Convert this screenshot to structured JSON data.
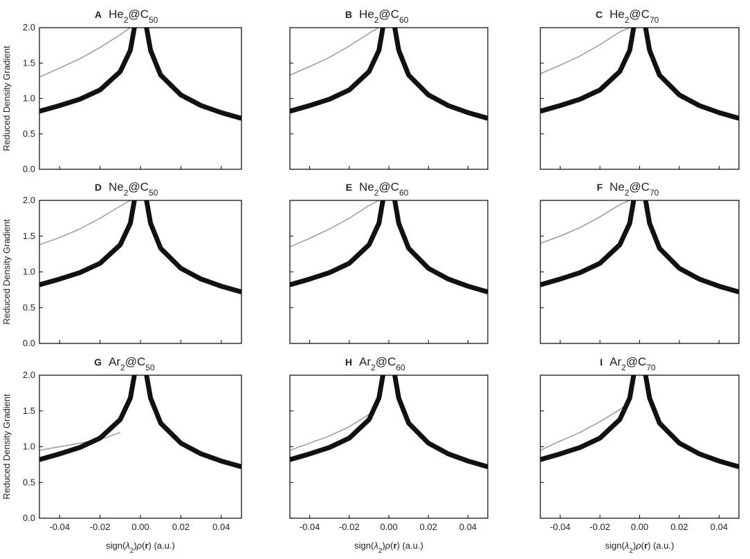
{
  "chart_data": [
    {
      "type": "line",
      "letter": "A",
      "title_parts": [
        "He",
        "2",
        "@C",
        "50"
      ],
      "ylabel": "Reduced Density Gradient",
      "x": [
        -0.05,
        -0.04,
        -0.03,
        -0.02,
        -0.01,
        -0.005,
        -0.003,
        0.003,
        0.005,
        0.01,
        0.02,
        0.03,
        0.04,
        0.05
      ],
      "series": [
        {
          "color": "#9a9a9a",
          "values": [
            1.3,
            1.43,
            1.56,
            1.72,
            1.9,
            2.0,
            null,
            null,
            null,
            null,
            null,
            null,
            null,
            null
          ]
        },
        {
          "color": "#111111",
          "values": [
            0.82,
            0.9,
            0.99,
            1.12,
            1.38,
            1.68,
            2.0,
            null,
            null,
            null,
            null,
            null,
            null,
            null
          ]
        },
        {
          "color": "#111111",
          "values": [
            null,
            null,
            null,
            null,
            null,
            null,
            null,
            2.0,
            1.68,
            1.33,
            1.05,
            0.9,
            0.8,
            0.72
          ]
        }
      ],
      "xlim": [
        -0.05,
        0.05
      ],
      "ylim": [
        0,
        2
      ],
      "xticks": [
        -0.04,
        -0.02,
        {
          "value": 0,
          "label": "0.00"
        },
        0.02,
        0.04
      ],
      "yticks": [
        {
          "value": 0,
          "label": "0.0"
        },
        0.5,
        {
          "value": 1,
          "label": "1.0"
        },
        1.5,
        {
          "value": 2,
          "label": "2.0"
        }
      ]
    },
    {
      "type": "line",
      "letter": "B",
      "title_parts": [
        "He",
        "2",
        "@C",
        "60"
      ],
      "x": [
        -0.05,
        -0.04,
        -0.03,
        -0.02,
        -0.01,
        -0.005,
        -0.003,
        0.003,
        0.005,
        0.01,
        0.02,
        0.03,
        0.04,
        0.05
      ],
      "series": [
        {
          "color": "#9a9a9a",
          "values": [
            1.33,
            1.45,
            1.58,
            1.74,
            1.92,
            2.0,
            null,
            null,
            null,
            null,
            null,
            null,
            null,
            null
          ]
        },
        {
          "color": "#111111",
          "values": [
            0.82,
            0.9,
            0.99,
            1.12,
            1.38,
            1.68,
            2.0,
            null,
            null,
            null,
            null,
            null,
            null,
            null
          ]
        },
        {
          "color": "#111111",
          "values": [
            null,
            null,
            null,
            null,
            null,
            null,
            null,
            2.0,
            1.68,
            1.33,
            1.05,
            0.9,
            0.8,
            0.72
          ]
        }
      ],
      "xlim": [
        -0.05,
        0.05
      ],
      "ylim": [
        0,
        2
      ],
      "xticks": [
        -0.04,
        -0.02,
        {
          "value": 0,
          "label": "0.00"
        },
        0.02,
        0.04
      ],
      "yticks": [
        {
          "value": 0,
          "label": "0.0"
        },
        0.5,
        {
          "value": 1,
          "label": "1.0"
        },
        1.5,
        {
          "value": 2,
          "label": "2.0"
        }
      ]
    },
    {
      "type": "line",
      "letter": "C",
      "title_parts": [
        "He",
        "2",
        "@C",
        "70"
      ],
      "x": [
        -0.05,
        -0.04,
        -0.03,
        -0.02,
        -0.01,
        -0.005,
        -0.003,
        0.003,
        0.005,
        0.01,
        0.02,
        0.03,
        0.04,
        0.05
      ],
      "series": [
        {
          "color": "#9a9a9a",
          "values": [
            1.35,
            1.47,
            1.6,
            1.76,
            1.94,
            2.0,
            null,
            null,
            null,
            null,
            null,
            null,
            null,
            null
          ]
        },
        {
          "color": "#111111",
          "values": [
            0.82,
            0.9,
            0.99,
            1.12,
            1.38,
            1.68,
            2.0,
            null,
            null,
            null,
            null,
            null,
            null,
            null
          ]
        },
        {
          "color": "#111111",
          "values": [
            null,
            null,
            null,
            null,
            null,
            null,
            null,
            2.0,
            1.68,
            1.33,
            1.05,
            0.9,
            0.8,
            0.72
          ]
        }
      ],
      "xlim": [
        -0.05,
        0.05
      ],
      "ylim": [
        0,
        2
      ],
      "xticks": [
        -0.04,
        -0.02,
        {
          "value": 0,
          "label": "0.00"
        },
        0.02,
        0.04
      ],
      "yticks": [
        {
          "value": 0,
          "label": "0.0"
        },
        0.5,
        {
          "value": 1,
          "label": "1.0"
        },
        1.5,
        {
          "value": 2,
          "label": "2.0"
        }
      ]
    },
    {
      "type": "line",
      "letter": "D",
      "title_parts": [
        "Ne",
        "2",
        "@C",
        "50"
      ],
      "ylabel": "Reduced Density Gradient",
      "x": [
        -0.05,
        -0.04,
        -0.03,
        -0.02,
        -0.01,
        -0.005,
        -0.003,
        0.003,
        0.005,
        0.01,
        0.02,
        0.03,
        0.04,
        0.05
      ],
      "series": [
        {
          "color": "#9a9a9a",
          "values": [
            1.38,
            1.48,
            1.6,
            1.75,
            1.92,
            2.0,
            null,
            null,
            null,
            null,
            null,
            null,
            null,
            null
          ]
        },
        {
          "color": "#111111",
          "values": [
            0.82,
            0.9,
            0.99,
            1.12,
            1.38,
            1.68,
            2.0,
            null,
            null,
            null,
            null,
            null,
            null,
            null
          ]
        },
        {
          "color": "#111111",
          "values": [
            null,
            null,
            null,
            null,
            null,
            null,
            null,
            2.0,
            1.68,
            1.33,
            1.05,
            0.9,
            0.8,
            0.72
          ]
        }
      ],
      "xlim": [
        -0.05,
        0.05
      ],
      "ylim": [
        0,
        2
      ],
      "xticks": [
        -0.04,
        -0.02,
        {
          "value": 0,
          "label": "0.00"
        },
        0.02,
        0.04
      ],
      "yticks": [
        {
          "value": 0,
          "label": "0.0"
        },
        0.5,
        {
          "value": 1,
          "label": "1.0"
        },
        1.5,
        {
          "value": 2,
          "label": "2.0"
        }
      ]
    },
    {
      "type": "line",
      "letter": "E",
      "title_parts": [
        "Ne",
        "2",
        "@C",
        "60"
      ],
      "x": [
        -0.05,
        -0.04,
        -0.03,
        -0.02,
        -0.01,
        -0.005,
        -0.003,
        0.003,
        0.005,
        0.01,
        0.02,
        0.03,
        0.04,
        0.05
      ],
      "series": [
        {
          "color": "#9a9a9a",
          "values": [
            1.35,
            1.47,
            1.6,
            1.75,
            1.93,
            2.0,
            null,
            null,
            null,
            null,
            null,
            null,
            null,
            null
          ]
        },
        {
          "color": "#111111",
          "values": [
            0.82,
            0.9,
            0.99,
            1.12,
            1.38,
            1.68,
            2.0,
            null,
            null,
            null,
            null,
            null,
            null,
            null
          ]
        },
        {
          "color": "#111111",
          "values": [
            null,
            null,
            null,
            null,
            null,
            null,
            null,
            2.0,
            1.68,
            1.33,
            1.05,
            0.9,
            0.8,
            0.72
          ]
        }
      ],
      "xlim": [
        -0.05,
        0.05
      ],
      "ylim": [
        0,
        2
      ],
      "xticks": [
        -0.04,
        -0.02,
        {
          "value": 0,
          "label": "0.00"
        },
        0.02,
        0.04
      ],
      "yticks": [
        {
          "value": 0,
          "label": "0.0"
        },
        0.5,
        {
          "value": 1,
          "label": "1.0"
        },
        1.5,
        {
          "value": 2,
          "label": "2.0"
        }
      ]
    },
    {
      "type": "line",
      "letter": "F",
      "title_parts": [
        "Ne",
        "2",
        "@C",
        "70"
      ],
      "x": [
        -0.05,
        -0.04,
        -0.03,
        -0.02,
        -0.01,
        -0.005,
        -0.003,
        0.003,
        0.005,
        0.01,
        0.02,
        0.03,
        0.04,
        0.05
      ],
      "series": [
        {
          "color": "#9a9a9a",
          "values": [
            1.4,
            1.5,
            1.62,
            1.77,
            1.94,
            2.0,
            null,
            null,
            null,
            null,
            null,
            null,
            null,
            null
          ]
        },
        {
          "color": "#111111",
          "values": [
            0.82,
            0.9,
            0.99,
            1.12,
            1.38,
            1.68,
            2.0,
            null,
            null,
            null,
            null,
            null,
            null,
            null
          ]
        },
        {
          "color": "#111111",
          "values": [
            null,
            null,
            null,
            null,
            null,
            null,
            null,
            2.0,
            1.68,
            1.33,
            1.05,
            0.9,
            0.8,
            0.72
          ]
        }
      ],
      "xlim": [
        -0.05,
        0.05
      ],
      "ylim": [
        0,
        2
      ],
      "xticks": [
        -0.04,
        -0.02,
        {
          "value": 0,
          "label": "0.00"
        },
        0.02,
        0.04
      ],
      "yticks": [
        {
          "value": 0,
          "label": "0.0"
        },
        0.5,
        {
          "value": 1,
          "label": "1.0"
        },
        1.5,
        {
          "value": 2,
          "label": "2.0"
        }
      ]
    },
    {
      "type": "line",
      "letter": "G",
      "title_parts": [
        "Ar",
        "2",
        "@C",
        "50"
      ],
      "ylabel": "Reduced Density Gradient",
      "xlabel_parts": [
        "sign(",
        "λ",
        "2",
        ")",
        "ρ",
        "(",
        "r",
        ") (a.u.)"
      ],
      "x": [
        -0.05,
        -0.04,
        -0.03,
        -0.02,
        -0.01,
        -0.005,
        -0.003,
        0.003,
        0.005,
        0.01,
        0.02,
        0.03,
        0.04,
        0.05
      ],
      "series": [
        {
          "color": "#9a9a9a",
          "values": [
            0.95,
            1.0,
            1.05,
            1.1,
            1.2,
            null,
            null,
            null,
            null,
            null,
            null,
            null,
            null,
            null
          ]
        },
        {
          "color": "#111111",
          "values": [
            0.82,
            0.9,
            0.99,
            1.12,
            1.38,
            1.68,
            2.0,
            null,
            null,
            null,
            null,
            null,
            null,
            null
          ]
        },
        {
          "color": "#111111",
          "values": [
            null,
            null,
            null,
            null,
            null,
            null,
            null,
            2.0,
            1.68,
            1.33,
            1.05,
            0.9,
            0.8,
            0.72
          ]
        }
      ],
      "xlim": [
        -0.05,
        0.05
      ],
      "ylim": [
        0,
        2
      ],
      "xticks": [
        -0.04,
        -0.02,
        {
          "value": 0,
          "label": "0.00"
        },
        0.02,
        0.04
      ],
      "yticks": [
        {
          "value": 0,
          "label": "0.0"
        },
        0.5,
        {
          "value": 1,
          "label": "1.0"
        },
        1.5,
        {
          "value": 2,
          "label": "2.0"
        }
      ]
    },
    {
      "type": "line",
      "letter": "H",
      "title_parts": [
        "Ar",
        "2",
        "@C",
        "60"
      ],
      "xlabel_parts": [
        "sign(",
        "λ",
        "2",
        ")",
        "ρ",
        "(",
        "r",
        ") (a.u.)"
      ],
      "x": [
        -0.05,
        -0.04,
        -0.03,
        -0.02,
        -0.01,
        -0.005,
        -0.003,
        0.003,
        0.005,
        0.01,
        0.02,
        0.03,
        0.04,
        0.05
      ],
      "series": [
        {
          "color": "#9a9a9a",
          "values": [
            0.95,
            1.05,
            1.15,
            1.28,
            1.45,
            null,
            null,
            null,
            null,
            null,
            null,
            null,
            null,
            null
          ]
        },
        {
          "color": "#111111",
          "values": [
            0.82,
            0.9,
            0.99,
            1.12,
            1.38,
            1.68,
            2.0,
            null,
            null,
            null,
            null,
            null,
            null,
            null
          ]
        },
        {
          "color": "#111111",
          "values": [
            null,
            null,
            null,
            null,
            null,
            null,
            null,
            2.0,
            1.68,
            1.33,
            1.05,
            0.9,
            0.8,
            0.72
          ]
        }
      ],
      "xlim": [
        -0.05,
        0.05
      ],
      "ylim": [
        0,
        2
      ],
      "xticks": [
        -0.04,
        -0.02,
        {
          "value": 0,
          "label": "0.00"
        },
        0.02,
        0.04
      ],
      "yticks": [
        {
          "value": 0,
          "label": "0.0"
        },
        0.5,
        {
          "value": 1,
          "label": "1.0"
        },
        1.5,
        {
          "value": 2,
          "label": "2.0"
        }
      ]
    },
    {
      "type": "line",
      "letter": "I",
      "title_parts": [
        "Ar",
        "2",
        "@C",
        "70"
      ],
      "xlabel_parts": [
        "sign(",
        "λ",
        "2",
        ")",
        "ρ",
        "(",
        "r",
        ") (a.u.)"
      ],
      "x": [
        -0.05,
        -0.04,
        -0.03,
        -0.02,
        -0.01,
        -0.005,
        -0.003,
        0.003,
        0.005,
        0.01,
        0.02,
        0.03,
        0.04,
        0.05
      ],
      "series": [
        {
          "color": "#9a9a9a",
          "values": [
            0.95,
            1.08,
            1.2,
            1.35,
            1.52,
            1.62,
            null,
            null,
            null,
            null,
            null,
            null,
            null,
            null
          ]
        },
        {
          "color": "#111111",
          "values": [
            0.82,
            0.9,
            0.99,
            1.12,
            1.38,
            1.68,
            2.0,
            null,
            null,
            null,
            null,
            null,
            null,
            null
          ]
        },
        {
          "color": "#111111",
          "values": [
            null,
            null,
            null,
            null,
            null,
            null,
            null,
            2.0,
            1.68,
            1.33,
            1.05,
            0.9,
            0.8,
            0.72
          ]
        }
      ],
      "xlim": [
        -0.05,
        0.05
      ],
      "ylim": [
        0,
        2
      ],
      "xticks": [
        -0.04,
        -0.02,
        {
          "value": 0,
          "label": "0.00"
        },
        0.02,
        0.04
      ],
      "yticks": [
        {
          "value": 0,
          "label": "0.0"
        },
        0.5,
        {
          "value": 1,
          "label": "1.0"
        },
        1.5,
        {
          "value": 2,
          "label": "2.0"
        }
      ]
    }
  ]
}
